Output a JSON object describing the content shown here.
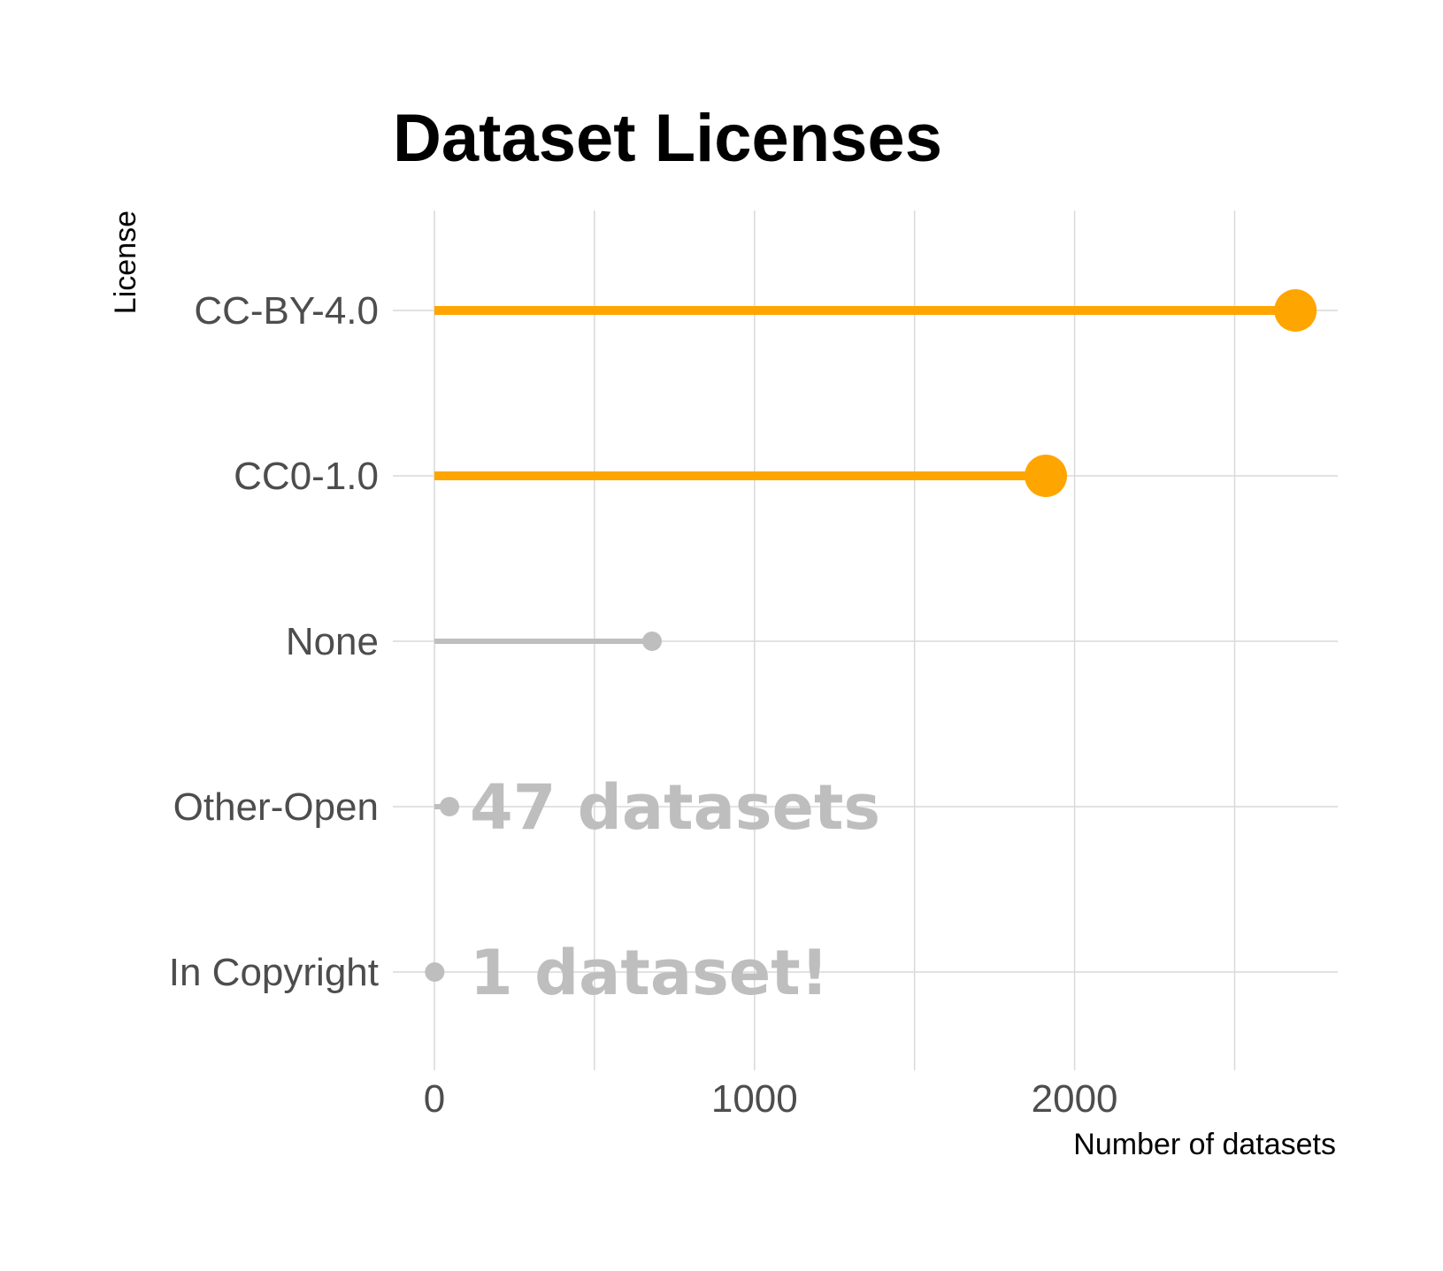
{
  "chart_data": {
    "type": "lollipop",
    "title": "Dataset Licenses",
    "xlabel": "Number of datasets",
    "ylabel": "License",
    "xlim": [
      0,
      2700
    ],
    "x_ticks": [
      0,
      1000,
      2000
    ],
    "x_minor_gridlines": [
      500,
      1500,
      2500
    ],
    "grid": true,
    "categories": [
      "CC-BY-4.0",
      "CC0-1.0",
      "None",
      "Other-Open",
      "In Copyright"
    ],
    "values": [
      2690,
      1910,
      680,
      47,
      1
    ],
    "colors": [
      "#FFA500",
      "#FFA500",
      "#BEBEBE",
      "#BEBEBE",
      "#BEBEBE"
    ],
    "highlight_color": "#FFA500",
    "muted_color": "#BEBEBE",
    "annotations": [
      {
        "category": "Other-Open",
        "text": "47 datasets"
      },
      {
        "category": "In Copyright",
        "text": "1 dataset!"
      }
    ]
  }
}
